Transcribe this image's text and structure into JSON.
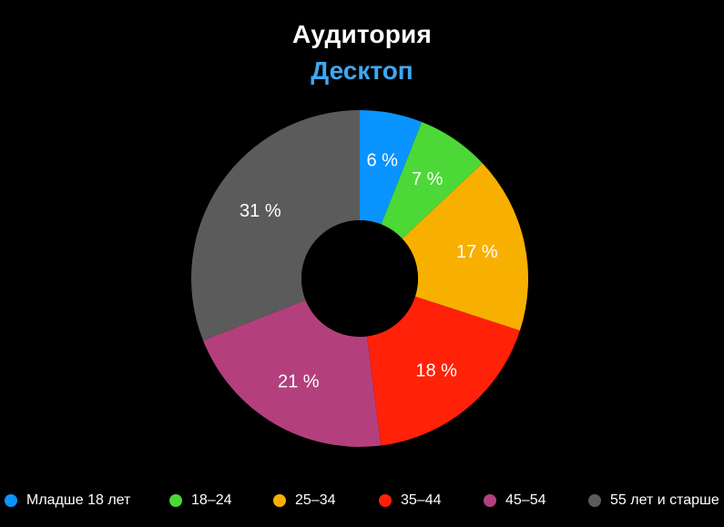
{
  "chart_data": {
    "type": "pie",
    "title": "Аудитория",
    "subtitle": "Десктоп",
    "donut": true,
    "series": [
      {
        "name": "Младше 18 лет",
        "value": 6,
        "label": "6 %",
        "color": "#0a94ff"
      },
      {
        "name": "18–24",
        "value": 7,
        "label": "7 %",
        "color": "#4cd836"
      },
      {
        "name": "25–34",
        "value": 17,
        "label": "17 %",
        "color": "#f8b000"
      },
      {
        "name": "35–44",
        "value": 18,
        "label": "18 %",
        "color": "#ff2108"
      },
      {
        "name": "45–54",
        "value": 21,
        "label": "21 %",
        "color": "#b3407c"
      },
      {
        "name": "55 лет и старше",
        "value": 31,
        "label": "31 %",
        "color": "#5b5b5b"
      }
    ],
    "legend_position": "bottom"
  },
  "colors": {
    "background": "#000000",
    "title": "#ffffff",
    "subtitle": "#3ea7f2"
  }
}
